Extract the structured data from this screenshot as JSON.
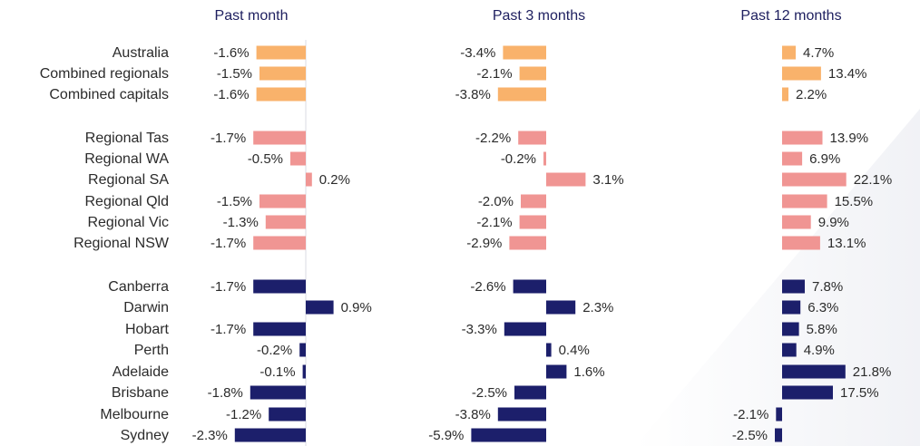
{
  "chart_data": {
    "type": "bar",
    "orientation": "horizontal",
    "panels": [
      "Past month",
      "Past 3 months",
      "Past 12 months"
    ],
    "categories": [
      "Australia",
      "Combined regionals",
      "Combined capitals",
      "Regional Tas",
      "Regional WA",
      "Regional SA",
      "Regional Qld",
      "Regional Vic",
      "Regional NSW",
      "Canberra",
      "Darwin",
      "Hobart",
      "Perth",
      "Adelaide",
      "Brisbane",
      "Melbourne",
      "Sydney"
    ],
    "groups": [
      {
        "categories": [
          "Australia",
          "Combined regionals",
          "Combined capitals"
        ],
        "color": "#f9b26b"
      },
      {
        "categories": [
          "Regional Tas",
          "Regional WA",
          "Regional SA",
          "Regional Qld",
          "Regional Vic",
          "Regional NSW"
        ],
        "color": "#f09593"
      },
      {
        "categories": [
          "Canberra",
          "Darwin",
          "Hobart",
          "Perth",
          "Adelaide",
          "Brisbane",
          "Melbourne",
          "Sydney"
        ],
        "color": "#1c1f6b"
      }
    ],
    "series": [
      {
        "values": [
          -1.6,
          -1.5,
          -1.6,
          -1.7,
          -0.5,
          0.2,
          -1.5,
          -1.3,
          -1.7,
          -1.7,
          0.9,
          -1.7,
          -0.2,
          -0.1,
          -1.8,
          -1.2,
          -2.3
        ]
      },
      {
        "values": [
          -3.4,
          -2.1,
          -3.8,
          -2.2,
          -0.2,
          3.1,
          -2.0,
          -2.1,
          -2.9,
          -2.6,
          2.3,
          -3.3,
          0.4,
          1.6,
          -2.5,
          -3.8,
          -5.9
        ]
      },
      {
        "values": [
          4.7,
          13.4,
          2.2,
          13.9,
          6.9,
          22.1,
          15.5,
          9.9,
          13.1,
          7.8,
          6.3,
          5.8,
          4.9,
          21.8,
          17.5,
          -2.1,
          -2.5
        ]
      }
    ],
    "unit": "%"
  }
}
